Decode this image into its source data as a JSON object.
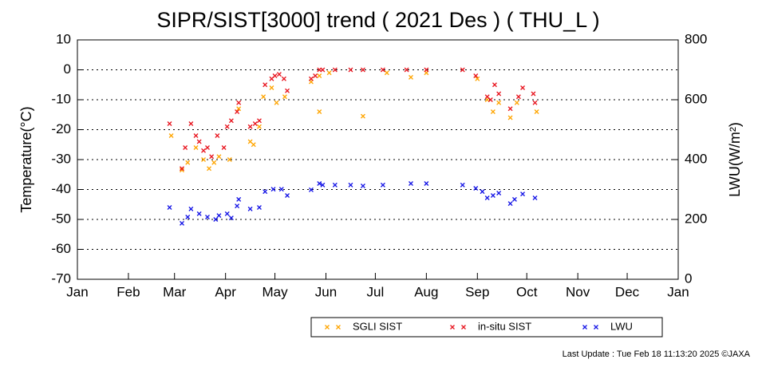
{
  "chart_data": {
    "type": "scatter",
    "title": "SIPR/SIST[3000] trend ( 2021 Des ) ( THU_L )",
    "y_label": "Temperature(°C)",
    "y2_label": "LWU(W/m²)",
    "annotation": "Last Update : Tue Feb 18 11:13:20 2025 ©JAXA",
    "xlim": [
      0,
      365
    ],
    "xticks": [
      {
        "value": 0,
        "label": "Jan"
      },
      {
        "value": 31,
        "label": "Feb"
      },
      {
        "value": 59,
        "label": "Mar"
      },
      {
        "value": 90,
        "label": "Apr"
      },
      {
        "value": 120,
        "label": "May"
      },
      {
        "value": 151,
        "label": "Jun"
      },
      {
        "value": 181,
        "label": "Jul"
      },
      {
        "value": 212,
        "label": "Aug"
      },
      {
        "value": 243,
        "label": "Sep"
      },
      {
        "value": 273,
        "label": "Oct"
      },
      {
        "value": 304,
        "label": "Nov"
      },
      {
        "value": 334,
        "label": "Dec"
      },
      {
        "value": 365,
        "label": "Jan"
      }
    ],
    "ylim": [
      -70,
      10
    ],
    "yticks": [
      -70,
      -60,
      -50,
      -40,
      -30,
      -20,
      -10,
      0,
      10
    ],
    "y2lim": [
      0,
      800
    ],
    "y2ticks": [
      0,
      200,
      400,
      600,
      800
    ],
    "grid": true,
    "legend": "bottom",
    "series": [
      {
        "name": "SGLI SIST",
        "color": "#ffa500",
        "x": [
          57,
          63.5,
          67,
          72,
          76.6,
          80,
          83,
          86,
          92.5,
          98,
          105,
          107,
          110.5,
          113,
          118,
          121,
          126,
          142,
          147,
          147,
          153,
          173.5,
          188,
          202.6,
          212,
          243,
          249,
          252.5,
          256,
          263,
          267,
          279
        ],
        "values": [
          -22,
          -33.5,
          -31,
          -26,
          -30,
          -33,
          -31,
          -29,
          -30,
          -13,
          -24,
          -25,
          -19,
          -9,
          -6,
          -11,
          -9,
          -4,
          -14,
          -2,
          -1,
          -15.5,
          -1,
          -2.5,
          -1,
          -3,
          -10,
          -14,
          -11,
          -16,
          -11,
          -14
        ]
      },
      {
        "name": "in-situ SIST",
        "color": "#e8141e",
        "x": [
          56,
          63.5,
          65.5,
          69,
          72,
          74,
          76.6,
          79,
          81.5,
          85,
          89,
          91,
          93.5,
          97,
          98,
          105,
          108,
          110.5,
          114,
          118,
          120,
          122.6,
          125.5,
          127.5,
          142,
          144.5,
          147,
          149,
          156.5,
          166,
          173.5,
          185.6,
          200,
          212,
          234,
          242,
          249,
          251,
          253.5,
          256,
          263,
          268,
          270.5,
          278,
          277
        ],
        "values": [
          -18,
          -33,
          -26,
          -18,
          -22,
          -24,
          -27,
          -26,
          -29,
          -22,
          -26,
          -19,
          -17,
          -14,
          -11,
          -19,
          -18,
          -17,
          -5,
          -3,
          -2,
          -1.5,
          -3,
          -7,
          -3,
          -2,
          0,
          0,
          0,
          0,
          0,
          0,
          0,
          0,
          0,
          -2,
          -9,
          -10,
          -5,
          -8,
          -13,
          -9,
          -6,
          -11,
          -8
        ]
      },
      {
        "name": "LWU",
        "color": "#1414e6",
        "axis": "y2",
        "x": [
          56,
          63.5,
          67,
          69,
          74,
          79,
          84,
          86,
          91,
          93.5,
          97,
          98,
          105,
          110.5,
          114,
          119,
          124,
          127.5,
          142,
          147,
          149,
          156.5,
          166,
          173.5,
          185.6,
          202.6,
          212,
          234,
          242,
          246,
          249,
          252.5,
          256,
          263,
          265.6,
          270.5,
          278
        ],
        "values": [
          240,
          187,
          208,
          235,
          219,
          208,
          200,
          213,
          219,
          205,
          245,
          267,
          235,
          240,
          293,
          301,
          301,
          280,
          299,
          320,
          315,
          315,
          315,
          312,
          315,
          320,
          320,
          315,
          304,
          293,
          272,
          280,
          288,
          253,
          267,
          285,
          272
        ]
      }
    ]
  }
}
